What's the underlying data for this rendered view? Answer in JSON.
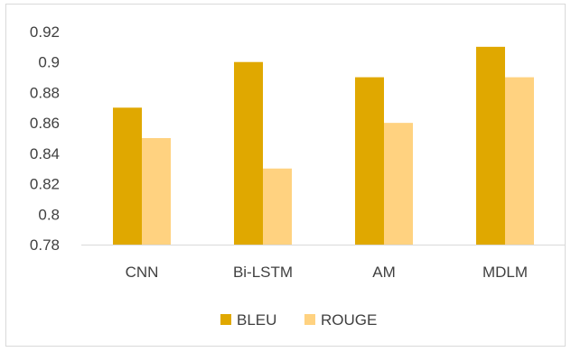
{
  "chart_data": {
    "type": "bar",
    "title": "",
    "xlabel": "",
    "ylabel": "",
    "categories": [
      "CNN",
      "Bi-LSTM",
      "AM",
      "MDLM"
    ],
    "series": [
      {
        "name": "BLEU",
        "values": [
          0.87,
          0.9,
          0.89,
          0.91
        ],
        "color": "#e0a800"
      },
      {
        "name": "ROUGE",
        "values": [
          0.85,
          0.83,
          0.86,
          0.89
        ],
        "color": "#ffd280"
      }
    ],
    "ylim": [
      0.78,
      0.92
    ],
    "yticks": [
      "0.78",
      "0.8",
      "0.82",
      "0.84",
      "0.86",
      "0.88",
      "0.9",
      "0.92"
    ],
    "ytick_values": [
      0.78,
      0.8,
      0.82,
      0.84,
      0.86,
      0.88,
      0.9,
      0.92
    ],
    "grid": false,
    "legend": "bottom-center"
  }
}
